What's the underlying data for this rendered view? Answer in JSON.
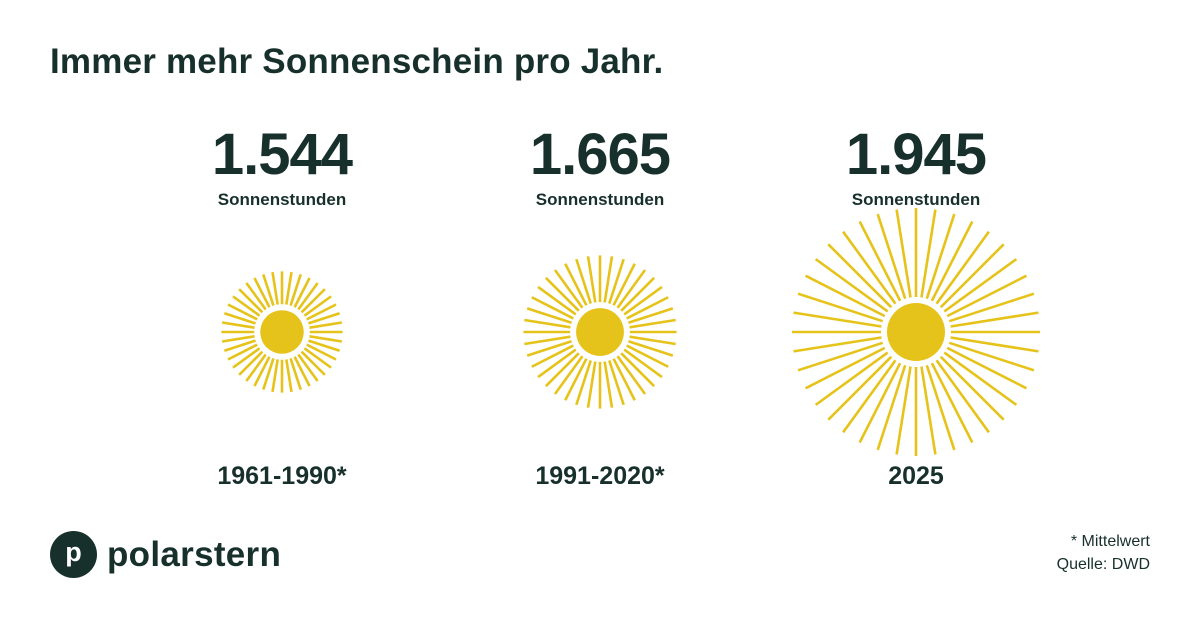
{
  "title": "Immer mehr Sonnenschein pro Jahr.",
  "chart_data": {
    "type": "pictogram",
    "title": "Immer mehr Sonnenschein pro Jahr.",
    "categories": [
      "1961-1990*",
      "1991-2020*",
      "2025"
    ],
    "values": [
      1544,
      1665,
      1945
    ],
    "value_labels": [
      "1.544",
      "1.665",
      "1.945"
    ],
    "unit": "Sonnenstunden",
    "colors": {
      "sun": "#e6c31a",
      "text": "#17302b",
      "background": "#ffffff"
    }
  },
  "columns": [
    {
      "value": "1.544",
      "unit": "Sonnenstunden",
      "period": "1961-1990*"
    },
    {
      "value": "1.665",
      "unit": "Sonnenstunden",
      "period": "1991-2020*"
    },
    {
      "value": "1.945",
      "unit": "Sonnenstunden",
      "period": "2025"
    }
  ],
  "logo": {
    "icon_letter": "p",
    "name": "polarstern",
    "icon": "polarstern-logo-icon"
  },
  "footnote": {
    "note": "* Mittelwert",
    "source_label": "Quelle:",
    "source_value": "DWD"
  }
}
